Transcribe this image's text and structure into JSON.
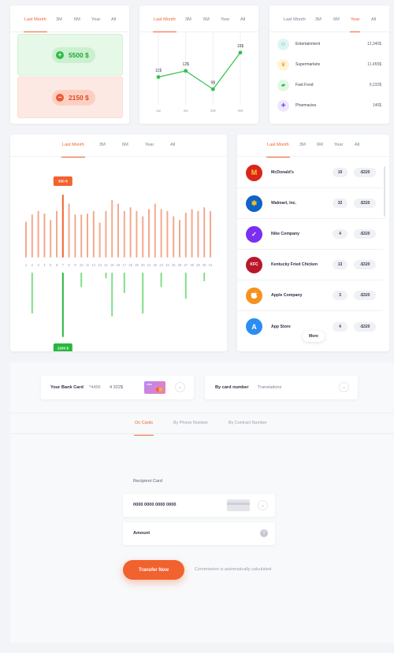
{
  "periods": [
    "Last Month",
    "3M",
    "6M",
    "Year",
    "All"
  ],
  "balance_card": {
    "income": "5500 $",
    "expense": "2150 $",
    "colors": {
      "income_bg": "#e6f8e8",
      "expense_bg": "#fde9e3",
      "income": "#2dbe44",
      "expense": "#ef5a35"
    }
  },
  "trend_card": {
    "tabs": [
      "Last Month",
      "3M",
      "6M",
      "Year",
      "All"
    ],
    "chart_data": {
      "type": "line",
      "categories": [
        "1w",
        "2w",
        "3W",
        "4W"
      ],
      "values": [
        11,
        12,
        9,
        15
      ],
      "labels": [
        "11$",
        "12$",
        "9$",
        "15$"
      ],
      "color": "#33c24a"
    }
  },
  "category_card": {
    "tabs": [
      "Last Month",
      "3M",
      "6M",
      "Year",
      "All"
    ],
    "items": [
      {
        "name": "Entertainment",
        "value": "12,340$",
        "icon": "smiley-icon",
        "color": "#dff5f3",
        "fg": "#27b3a6"
      },
      {
        "name": "Supermarkets",
        "value": "11,455$",
        "icon": "basket-icon",
        "color": "#fff4dc",
        "fg": "#f0a21a"
      },
      {
        "name": "Fast Food",
        "value": "9,232$",
        "icon": "food-icon",
        "color": "#e3f7e6",
        "fg": "#31b549"
      },
      {
        "name": "Pharmacies",
        "value": "140$",
        "icon": "pharmacy-icon",
        "color": "#efe8fd",
        "fg": "#7a4ef0"
      }
    ]
  },
  "bars_card": {
    "tabs": [
      "Last Month",
      "3M",
      "6M",
      "Year",
      "All"
    ],
    "tooltip_top": "350 $",
    "tooltip_bottom": "1100 $",
    "chart_data": {
      "type": "bar",
      "categories": [
        "1",
        "2",
        "3",
        "4",
        "5",
        "6",
        "7",
        "8",
        "9",
        "10",
        "11",
        "12",
        "13",
        "14",
        "15",
        "16",
        "17",
        "18",
        "19",
        "20",
        "21",
        "22",
        "23",
        "24",
        "25",
        "26",
        "27",
        "28",
        "29",
        "30",
        "31"
      ],
      "series": [
        {
          "values": [
            200,
            240,
            260,
            245,
            210,
            260,
            350,
            300,
            240,
            240,
            245,
            260,
            195,
            260,
            320,
            300,
            260,
            280,
            260,
            230,
            270,
            300,
            270,
            260,
            230,
            210,
            250,
            270,
            260,
            280,
            260
          ]
        },
        {
          "values": [
            0,
            700,
            0,
            0,
            0,
            0,
            1100,
            0,
            0,
            250,
            0,
            0,
            0,
            100,
            750,
            0,
            350,
            0,
            0,
            700,
            0,
            0,
            250,
            0,
            0,
            0,
            450,
            0,
            0,
            150,
            0
          ]
        }
      ],
      "highlight_index": 6,
      "colors": {
        "top": "#f4a98e",
        "top_active": "#f2622e",
        "bottom": "#7fdf86",
        "bottom_active": "#26b83c"
      }
    }
  },
  "merchants_card": {
    "tabs": [
      "Last Month",
      "3M",
      "6M",
      "Year",
      "All"
    ],
    "items": [
      {
        "name": "McDonald's",
        "count": "10",
        "amount": "-$320",
        "logo": "M",
        "color": "#d9251c"
      },
      {
        "name": "Walmart, Inc.",
        "count": "32",
        "amount": "-$320",
        "logo": "✱",
        "color": "#0d63c6"
      },
      {
        "name": "Nike Company",
        "count": "4",
        "amount": "-$320",
        "logo": "✓",
        "color": "#7b2ff2"
      },
      {
        "name": "Kentucky Fried Chicken",
        "count": "13",
        "amount": "-$320",
        "logo": "KFC",
        "color": "#b8172b"
      },
      {
        "name": "Apple Company",
        "count": "3",
        "amount": "-$320",
        "logo": "",
        "color": "#f6921e"
      },
      {
        "name": "App Store",
        "count": "4",
        "amount": "-$320",
        "logo": "A",
        "color": "#2b8cf4"
      }
    ],
    "more": "More"
  },
  "transfer": {
    "bank_card_label": "Your Bank Card",
    "bank_card_number": "*4456",
    "bank_card_balance": "4 322$",
    "card_brand": "VISA",
    "by_card_label": "By card number",
    "by_card_value": "Translations",
    "tabs": [
      "On Cards",
      "By Phone Number",
      "By Contract Number"
    ],
    "recipient_label": "Recipient Card",
    "card_number_value": "0000 0000 0000 0000",
    "amount_label": "Amount",
    "transfer_button": "Transfer Now",
    "commission_note": "Commission is automatically calculated",
    "accent": "#f2622e"
  }
}
